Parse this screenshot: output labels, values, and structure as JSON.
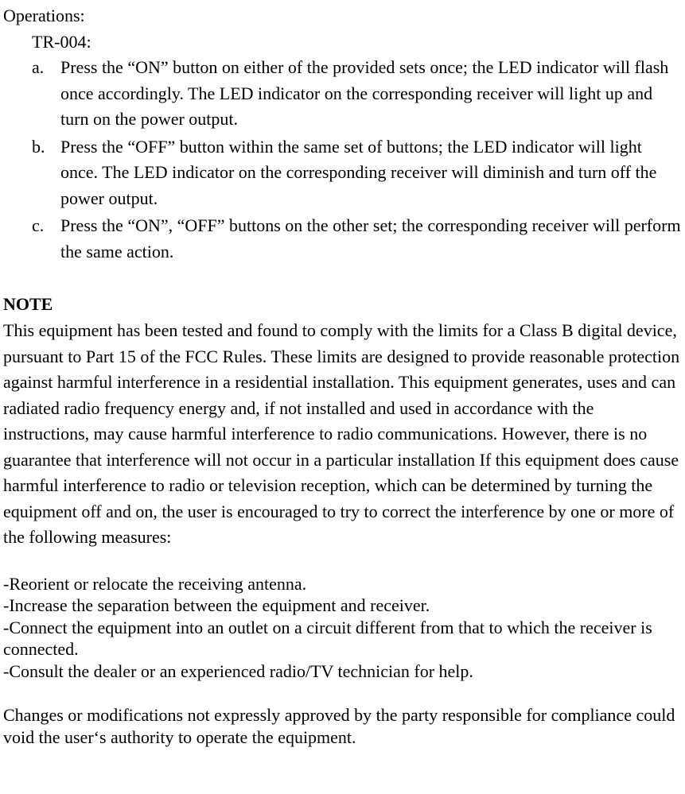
{
  "fontFamily": "Times New Roman, Times, serif",
  "fontSizePx": 22,
  "textColor": "#000000",
  "backgroundColor": "#ffffff",
  "operations": {
    "heading": "Operations:",
    "model": "TR-004:",
    "items": [
      {
        "marker": "a.",
        "text": "Press the “ON” button on either of the provided sets once; the LED indicator will flash once accordingly.  The LED indicator on the corresponding receiver will light up and turn on the power output."
      },
      {
        "marker": "b.",
        "text": "Press the “OFF” button within the same set of buttons; the LED indicator will light once.  The LED indicator on the corresponding receiver will diminish and turn off the power output."
      },
      {
        "marker": "c.",
        "text": "Press the “ON”, “OFF” buttons on the other set; the corresponding receiver will perform the same action."
      }
    ]
  },
  "note": {
    "heading": "NOTE",
    "body": "This equipment has been tested and found to comply with the limits for a Class B digital device, pursuant to Part 15 of the FCC Rules. These limits are designed to provide reasonable protection against harmful interference in a residential installation. This equipment generates, uses and can radiated radio frequency energy and, if not installed and used in accordance with the instructions, may cause harmful interference to radio communications. However, there is no guarantee that interference will not occur in a particular installation If this equipment does cause harmful interference to radio or television reception, which can be determined by turning the equipment off and on, the user is encouraged to try to correct the interference by one or more of the following measures:"
  },
  "measures": [
    "-Reorient or relocate the receiving antenna.",
    "-Increase the separation between the equipment and receiver.",
    "-Connect the equipment into an outlet on a circuit different from that to which the receiver is connected.",
    "-Consult the dealer or an experienced radio/TV technician for help."
  ],
  "footer": "Changes or modifications not expressly approved by the party responsible for compliance could void the user‘s authority to operate the equipment."
}
